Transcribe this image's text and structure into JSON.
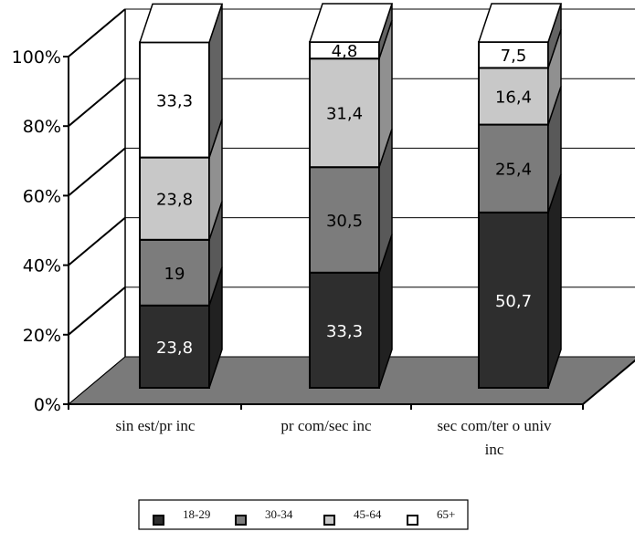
{
  "chart_data": {
    "type": "bar",
    "stacked": true,
    "percent_axis": true,
    "three_d": true,
    "title": "",
    "xlabel": "",
    "ylabel": "",
    "ylim": [
      0,
      100
    ],
    "y_ticks": [
      "0%",
      "20%",
      "40%",
      "60%",
      "80%",
      "100%"
    ],
    "categories": [
      [
        "sin est/pr inc"
      ],
      [
        "pr com/sec inc"
      ],
      [
        "sec com/ter o univ",
        "inc"
      ]
    ],
    "series": [
      {
        "name": "18-29",
        "color": "#2e2e2e",
        "label_color": "#ffffff",
        "values": [
          23.8,
          33.3,
          50.7
        ],
        "labels": [
          "23,8",
          "33,3",
          "50,7"
        ]
      },
      {
        "name": "30-34",
        "color": "#7c7c7c",
        "label_color": "#000000",
        "values": [
          19,
          30.5,
          25.4
        ],
        "labels": [
          "19",
          "30,5",
          "25,4"
        ]
      },
      {
        "name": "45-64",
        "color": "#c8c8c8",
        "label_color": "#000000",
        "values": [
          23.8,
          31.4,
          16.4
        ],
        "labels": [
          "23,8",
          "31,4",
          "16,4"
        ]
      },
      {
        "name": "65+",
        "color": "#ffffff",
        "label_color": "#000000",
        "values": [
          33.3,
          4.8,
          7.5
        ],
        "labels": [
          "33,3",
          "4,8",
          "7,5"
        ]
      }
    ],
    "gridlines": true,
    "legend_position": "bottom"
  }
}
